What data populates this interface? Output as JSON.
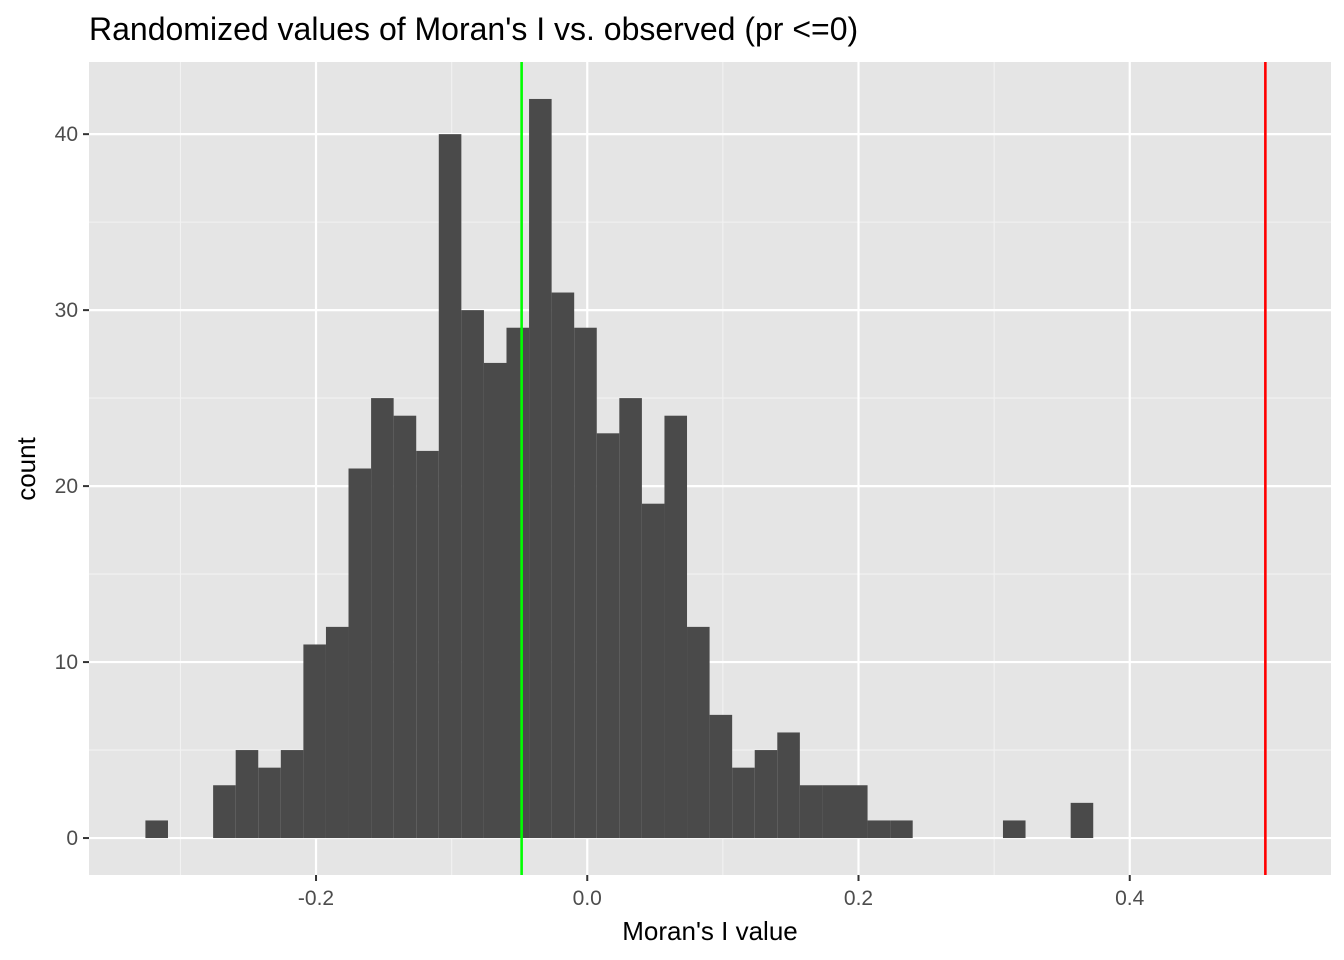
{
  "chart_data": {
    "type": "bar",
    "subtype": "histogram",
    "title": "Randomized values of Moran's I vs. observed (pr <=0)",
    "xlabel": "Moran's I value",
    "ylabel": "count",
    "xlim": [
      -0.3674,
      0.5484
    ],
    "ylim": [
      -2.1,
      44.1
    ],
    "grid": true,
    "xticks": [
      {
        "value": -0.2,
        "label": "-0.2"
      },
      {
        "value": 0.0,
        "label": "0.0"
      },
      {
        "value": 0.2,
        "label": "0.2"
      },
      {
        "value": 0.4,
        "label": "0.4"
      }
    ],
    "x_minor_ticks": [
      -0.3,
      -0.1,
      0.1,
      0.3,
      0.5
    ],
    "yticks": [
      {
        "value": 0,
        "label": "0"
      },
      {
        "value": 10,
        "label": "10"
      },
      {
        "value": 20,
        "label": "20"
      },
      {
        "value": 30,
        "label": "30"
      },
      {
        "value": 40,
        "label": "40"
      }
    ],
    "y_minor_ticks": [
      5,
      15,
      25,
      35
    ],
    "bin_width": 0.01664,
    "bin_start": -0.3258,
    "counts": [
      1,
      0,
      0,
      3,
      5,
      4,
      5,
      11,
      12,
      21,
      25,
      24,
      22,
      40,
      30,
      27,
      29,
      42,
      31,
      29,
      23,
      25,
      19,
      24,
      12,
      7,
      4,
      5,
      6,
      3,
      3,
      3,
      1,
      1,
      0,
      0,
      0,
      0,
      1,
      0,
      0,
      2
    ],
    "reference_lines": [
      {
        "x": -0.0484,
        "color": "#00ff00"
      },
      {
        "x": 0.5,
        "color": "#ff0000"
      }
    ],
    "colors": {
      "bar": "#4a4a4a",
      "panel": "#e5e5e5",
      "grid_major": "#ffffff",
      "grid_minor": "#f2f2f2"
    }
  }
}
